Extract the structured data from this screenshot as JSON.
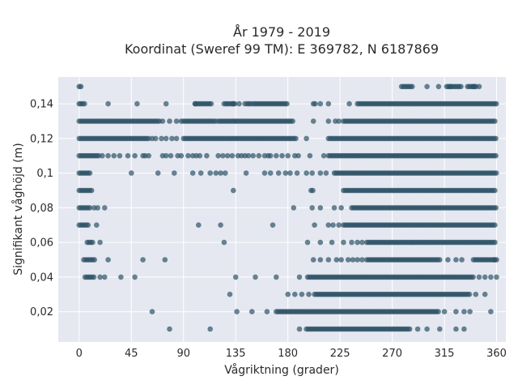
{
  "chart_data": {
    "type": "scatter",
    "title_line1": "År 1979 - 2019",
    "title_line2": "Koordinat (Sweref 99 TM): E 369782, N 6187869",
    "xlabel": "Vågriktning (grader)",
    "ylabel": "Signifikant våghöjd (m)",
    "xlim": [
      -18,
      368
    ],
    "ylim": [
      0.0025,
      0.1555
    ],
    "xticks": [
      0,
      45,
      90,
      135,
      180,
      225,
      270,
      315,
      360
    ],
    "xtick_labels": [
      "0",
      "45",
      "90",
      "135",
      "180",
      "225",
      "270",
      "315",
      "360"
    ],
    "yticks": [
      0.02,
      0.04,
      0.06,
      0.08,
      0.1,
      0.12,
      0.14
    ],
    "ytick_labels": [
      "0,02",
      "0,04",
      "0,06",
      "0,08",
      "0,1",
      "0,12",
      "0,14"
    ],
    "grid": true,
    "marker_color": "#2e5266",
    "background_color": "#e5e8f0",
    "series": [
      {
        "x_segments": [
          {
            "y": 0.15,
            "ranges": [
              [
                0,
                3
              ],
              [
                278,
                288
              ],
              [
                317,
                330
              ],
              [
                335,
                342
              ]
            ],
            "points": [
              300,
              310,
              320,
              340,
              342,
              345
            ]
          },
          {
            "y": 0.14,
            "ranges": [
              [
                0,
                6
              ],
              [
                100,
                115
              ],
              [
                125,
                135
              ],
              [
                145,
                148
              ],
              [
                150,
                180
              ],
              [
                202,
                205
              ],
              [
                240,
                360
              ]
            ],
            "points": [
              25,
              50,
              75,
              100,
              133,
              138,
              143,
              148,
              208,
              215,
              233
            ]
          },
          {
            "y": 0.13,
            "ranges": [
              [
                0,
                70
              ],
              [
                90,
                118
              ],
              [
                120,
                135
              ],
              [
                135,
                185
              ],
              [
                228,
                360
              ]
            ],
            "points": [
              72,
              78,
              84,
              88,
              202,
              215,
              221,
              224
            ]
          },
          {
            "y": 0.12,
            "ranges": [
              [
                0,
                60
              ],
              [
                90,
                126
              ],
              [
                127,
                188
              ],
              [
                215,
                360
              ]
            ],
            "points": [
              63,
              66,
              71,
              75,
              80,
              84,
              196
            ]
          },
          {
            "y": 0.11,
            "ranges": [
              [
                0,
                18
              ],
              [
                215,
                360
              ]
            ],
            "points": [
              20,
              25,
              30,
              35,
              42,
              48,
              55,
              57,
              60,
              72,
              75,
              79,
              85,
              88,
              94,
              98,
              101,
              104,
              110,
              120,
              124,
              128,
              132,
              137,
              140,
              143,
              146,
              150,
              155,
              160,
              163,
              165,
              170,
              175,
              180,
              186,
              189,
              199,
              211
            ]
          },
          {
            "y": 0.1,
            "ranges": [
              [
                0,
                10
              ],
              [
                220,
                360
              ]
            ],
            "points": [
              45,
              68,
              82,
              98,
              105,
              113,
              118,
              122,
              126,
              144,
              160,
              165,
              172,
              178,
              182,
              188,
              196,
              201,
              208,
              213
            ]
          },
          {
            "y": 0.09,
            "ranges": [
              [
                0,
                12
              ],
              [
                200,
                202
              ],
              [
                228,
                360
              ]
            ],
            "points": [
              133
            ]
          },
          {
            "y": 0.08,
            "ranges": [
              [
                0,
                10
              ],
              [
                235,
                360
              ]
            ],
            "points": [
              13,
              16,
              22,
              185,
              201,
              208,
              220,
              226
            ]
          },
          {
            "y": 0.07,
            "ranges": [
              [
                0,
                8
              ],
              [
                228,
                360
              ]
            ],
            "points": [
              15,
              103,
              122,
              167,
              203,
              215,
              219,
              224
            ]
          },
          {
            "y": 0.06,
            "ranges": [
              [
                7,
                12
              ],
              [
                248,
                360
              ]
            ],
            "points": [
              18,
              125,
              197,
              208,
              218,
              228,
              235,
              240,
              244
            ]
          },
          {
            "y": 0.05,
            "ranges": [
              [
                4,
                14
              ],
              [
                248,
                312
              ],
              [
                340,
                360
              ]
            ],
            "points": [
              25,
              55,
              74,
              202,
              208,
              215,
              222,
              226,
              232,
              236,
              240,
              244,
              318,
              325,
              330,
              358
            ]
          },
          {
            "y": 0.04,
            "ranges": [
              [
                5,
                14
              ],
              [
                197,
                340
              ]
            ],
            "points": [
              18,
              22,
              36,
              48,
              135,
              152,
              170,
              190,
              345,
              350,
              355,
              360
            ]
          },
          {
            "y": 0.03,
            "ranges": [
              [
                203,
                338
              ]
            ],
            "points": [
              130,
              180,
              186,
              192,
              198,
              342,
              350
            ]
          },
          {
            "y": 0.02,
            "ranges": [
              [
                170,
                310
              ]
            ],
            "points": [
              63,
              136,
              149,
              162,
              315,
              325,
              332,
              337,
              355
            ]
          },
          {
            "y": 0.01,
            "ranges": [
              [
                196,
                286
              ]
            ],
            "points": [
              78,
              113,
              190,
              292,
              300,
              311,
              325,
              332
            ]
          }
        ]
      }
    ]
  }
}
